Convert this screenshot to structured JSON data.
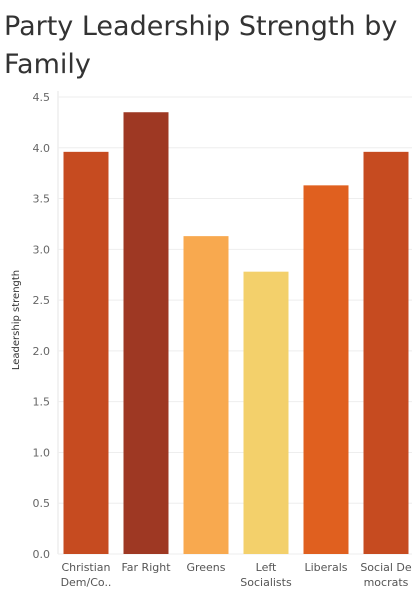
{
  "chart_data": {
    "type": "bar",
    "title": "Party Leadership Strength by Family",
    "xlabel": "",
    "ylabel": "Leadership strength",
    "categories": [
      [
        "Christian",
        "Dem/Co.."
      ],
      [
        "Far Right"
      ],
      [
        "Greens"
      ],
      [
        "Left",
        "Socialists"
      ],
      [
        "Liberals"
      ],
      [
        "Social De",
        "mocrats"
      ]
    ],
    "values": [
      3.96,
      4.35,
      3.13,
      2.78,
      3.63,
      3.96
    ],
    "colors": [
      "#c64b20",
      "#9e3823",
      "#f8a94f",
      "#f3d06b",
      "#e0601f",
      "#c64b20"
    ],
    "ylim": [
      0,
      4.5
    ],
    "yticks": [
      0.0,
      0.5,
      1.0,
      1.5,
      2.0,
      2.5,
      3.0,
      3.5,
      4.0,
      4.5
    ],
    "grid": true
  }
}
